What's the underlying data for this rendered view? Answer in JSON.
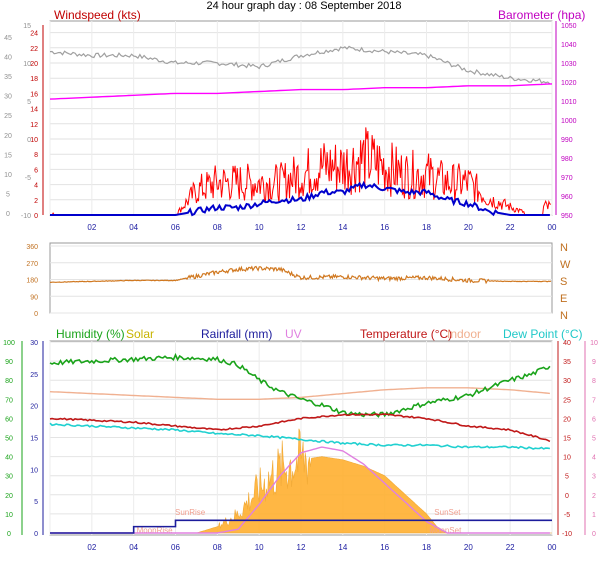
{
  "page": {
    "title": "24 hour graph day : 08 September 2018"
  },
  "panels": {
    "wind_baro": {
      "left_label": "Windspeed (kts)",
      "right_label": "Barometer (hpa)",
      "outer_ticks": [
        "45",
        "40",
        "35",
        "30",
        "25",
        "20",
        "15",
        "10",
        "5",
        "0"
      ],
      "wind_ticks": [
        "24",
        "22",
        "20",
        "18",
        "16",
        "14",
        "12",
        "10",
        "8",
        "6",
        "4",
        "2",
        "0"
      ],
      "temp_ticks": [
        "15",
        "10",
        "5",
        "0",
        "-5",
        "-10"
      ],
      "baro_ticks": [
        "1050",
        "1040",
        "1030",
        "1020",
        "1010",
        "1000",
        "990",
        "980",
        "970",
        "960",
        "950"
      ],
      "x_ticks": [
        "02",
        "04",
        "06",
        "08",
        "10",
        "12",
        "14",
        "16",
        "18",
        "20",
        "22",
        "00"
      ]
    },
    "direction": {
      "left_ticks": [
        "360",
        "270",
        "180",
        "90",
        "0"
      ],
      "compass": [
        "N",
        "W",
        "S",
        "E",
        "N"
      ]
    },
    "lower": {
      "legend": [
        {
          "label": "Humidity (%)",
          "color": "#1aa31a"
        },
        {
          "label": "Solar",
          "color": "#c8b400"
        },
        {
          "label": "Rainfall (mm)",
          "color": "#1c1c9c"
        },
        {
          "label": "UV",
          "color": "#e080e0"
        },
        {
          "label": "Temperature (°C)",
          "color": "#c01818"
        },
        {
          "label": "Indoor",
          "color": "#f0b090"
        },
        {
          "label": "Dew Point (°C)",
          "color": "#20d0d0"
        }
      ],
      "humidity_ticks": [
        "100",
        "90",
        "80",
        "70",
        "60",
        "50",
        "40",
        "30",
        "20",
        "10",
        "0"
      ],
      "rain_ticks": [
        "30",
        "25",
        "20",
        "15",
        "10",
        "5",
        "0"
      ],
      "temp_ticks": [
        "40",
        "35",
        "30",
        "25",
        "20",
        "15",
        "10",
        "5",
        "0",
        "-5",
        "-10"
      ],
      "uv_ticks": [
        "10",
        "9",
        "8",
        "7",
        "6",
        "5",
        "4",
        "3",
        "2",
        "1",
        "0"
      ],
      "x_ticks": [
        "02",
        "04",
        "06",
        "08",
        "10",
        "12",
        "14",
        "16",
        "18",
        "20",
        "22",
        "00"
      ],
      "events": [
        {
          "label": "SunRise",
          "hour": 6.7,
          "row": 1
        },
        {
          "label": "MoonRise",
          "hour": 5.0,
          "row": 2
        },
        {
          "label": "SunSet",
          "hour": 19.0,
          "row": 1
        },
        {
          "label": "MoonSet",
          "hour": 18.9,
          "row": 2
        }
      ]
    }
  },
  "chart_data": [
    {
      "type": "line",
      "x_unit": "hour",
      "xlim": [
        0,
        24
      ],
      "series": [
        {
          "name": "Windspeed (kts)",
          "color": "#ff0000",
          "ylim": [
            0,
            25
          ],
          "x": [
            0,
            1,
            2,
            3,
            4,
            5,
            6,
            7,
            8,
            9,
            10,
            11,
            12,
            13,
            14,
            15,
            16,
            17,
            18,
            19,
            20,
            21,
            22,
            23,
            24
          ],
          "values": [
            0,
            0,
            0,
            0,
            0,
            0,
            0,
            3,
            4,
            4,
            4,
            4,
            5,
            6,
            6,
            7,
            6,
            5,
            5,
            4,
            4,
            2,
            1,
            0,
            0
          ]
        },
        {
          "name": "Gust",
          "color": "#0000cc",
          "ylim": [
            0,
            25
          ],
          "x": [
            0,
            2,
            4,
            6,
            7,
            8,
            9,
            10,
            11,
            12,
            13,
            14,
            15,
            16,
            17,
            18,
            19,
            20,
            21,
            22,
            24
          ],
          "values": [
            0,
            0,
            0,
            0,
            0.5,
            1,
            1,
            1.5,
            2,
            2,
            3,
            3,
            4,
            3.5,
            3,
            3,
            2,
            1.5,
            0.5,
            0,
            0
          ]
        },
        {
          "name": "Barometer (hpa)",
          "color": "#ff00ff",
          "ylim": [
            950,
            1050
          ],
          "x": [
            0,
            2,
            4,
            6,
            8,
            10,
            12,
            14,
            16,
            18,
            20,
            22,
            24
          ],
          "values": [
            1011,
            1012,
            1013,
            1014,
            1014,
            1015,
            1016,
            1016,
            1017,
            1017,
            1018,
            1018,
            1019
          ]
        },
        {
          "name": "Temperature",
          "color": "#a0a0a0",
          "ylim": [
            -10,
            15
          ],
          "x": [
            0,
            2,
            4,
            6,
            8,
            10,
            12,
            14,
            16,
            18,
            20,
            22,
            24
          ],
          "values": [
            11.5,
            11,
            11,
            10,
            10,
            9.5,
            11,
            12,
            11.5,
            11,
            9,
            8,
            7.5
          ]
        }
      ]
    },
    {
      "type": "line",
      "name": "Wind direction",
      "color": "#d07820",
      "x_unit": "hour",
      "xlim": [
        0,
        24
      ],
      "ylim": [
        0,
        360
      ],
      "x": [
        0,
        2,
        4,
        6,
        8,
        9,
        10,
        11,
        12,
        14,
        16,
        18,
        20,
        22,
        24
      ],
      "values": [
        165,
        170,
        175,
        175,
        220,
        235,
        240,
        235,
        190,
        195,
        185,
        190,
        175,
        170,
        170
      ]
    },
    {
      "type": "area",
      "x_unit": "hour",
      "xlim": [
        0,
        24
      ],
      "series": [
        {
          "name": "Humidity (%)",
          "color": "#1aa31a",
          "ylim": [
            0,
            100
          ],
          "x": [
            0,
            2,
            4,
            6,
            8,
            9,
            10,
            11,
            12,
            13,
            14,
            15,
            16,
            17,
            18,
            19,
            20,
            21,
            22,
            23,
            24
          ],
          "values": [
            89,
            90,
            91,
            92,
            91,
            88,
            80,
            74,
            70,
            67,
            63,
            62,
            62,
            65,
            68,
            70,
            72,
            76,
            80,
            83,
            88
          ]
        },
        {
          "name": "Solar",
          "color": "#ffb030",
          "ylim": [
            0,
            30
          ],
          "x": [
            0,
            6,
            7,
            8,
            9,
            10,
            11,
            12,
            13,
            14,
            15,
            16,
            17,
            18,
            18.5,
            19,
            24
          ],
          "values": [
            0,
            0,
            0,
            1,
            3,
            7,
            10,
            11.5,
            12,
            11.5,
            10.5,
            9,
            6,
            3,
            1,
            0,
            0
          ]
        },
        {
          "name": "Rainfall (mm)",
          "color": "#1c1c9c",
          "ylim": [
            0,
            30
          ],
          "x": [
            0,
            1,
            2,
            3,
            3.8,
            4,
            5,
            6,
            7,
            8,
            12,
            18,
            24
          ],
          "values": [
            0,
            0,
            0,
            0,
            0,
            1,
            1,
            2,
            2,
            2,
            2,
            2,
            2
          ]
        },
        {
          "name": "UV",
          "color": "#e080e0",
          "ylim": [
            0,
            10
          ],
          "x": [
            0,
            6,
            7,
            8,
            9,
            10,
            11,
            12,
            13,
            14,
            15,
            16,
            17,
            18,
            19,
            24
          ],
          "values": [
            0,
            0,
            0,
            0,
            0.2,
            1.5,
            3,
            4.2,
            4.5,
            4.3,
            3.6,
            2.6,
            1.6,
            0.6,
            0,
            0
          ]
        },
        {
          "name": "Temperature (°C)",
          "color": "#c01818",
          "ylim": [
            -10,
            40
          ],
          "x": [
            0,
            2,
            4,
            6,
            8,
            10,
            12,
            14,
            16,
            18,
            20,
            22,
            24
          ],
          "values": [
            20,
            19.5,
            19,
            18,
            17,
            18,
            20,
            21,
            21,
            20,
            18,
            17,
            14
          ]
        },
        {
          "name": "Indoor",
          "color": "#f0b090",
          "ylim": [
            -10,
            40
          ],
          "x": [
            0,
            2,
            4,
            6,
            8,
            10,
            12,
            14,
            16,
            18,
            20,
            22,
            24
          ],
          "values": [
            27,
            26.5,
            26,
            25.5,
            25,
            25,
            25.5,
            26.5,
            27.5,
            28,
            28,
            27.5,
            26.5
          ]
        },
        {
          "name": "Dew Point (°C)",
          "color": "#20d0d0",
          "ylim": [
            -10,
            40
          ],
          "x": [
            0,
            2,
            4,
            6,
            8,
            10,
            12,
            14,
            16,
            18,
            20,
            22,
            24
          ],
          "values": [
            18.5,
            18,
            17.5,
            17,
            16,
            15.5,
            14.5,
            13.5,
            13,
            13,
            12.5,
            12.5,
            12
          ]
        }
      ]
    }
  ]
}
